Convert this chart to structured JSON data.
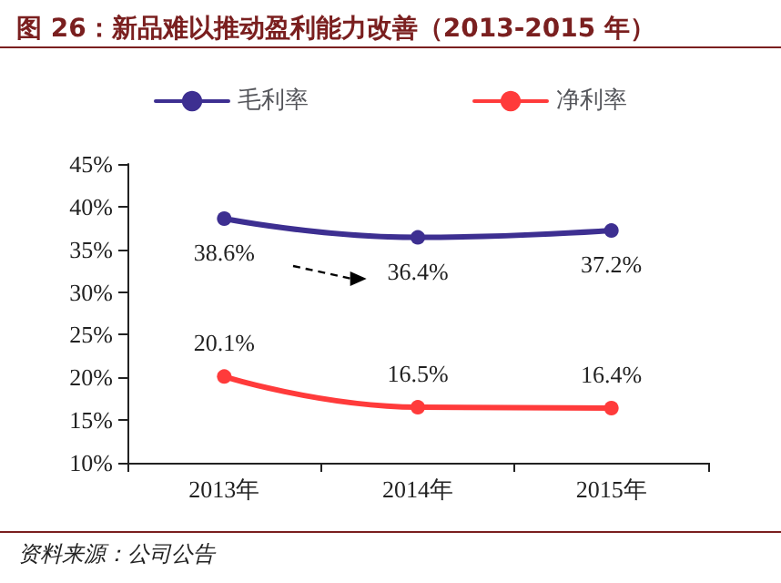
{
  "chart_data": {
    "type": "line",
    "title": "图 26：新品难以推动盈利能力改善（2013-2015 年）",
    "categories": [
      "2013年",
      "2014年",
      "2015年"
    ],
    "series": [
      {
        "name": "毛利率",
        "color": "#3d2f91",
        "values": [
          38.6,
          36.4,
          37.2
        ],
        "value_labels": [
          "38.6%",
          "36.4%",
          "37.2%"
        ]
      },
      {
        "name": "净利率",
        "color": "#ff3b3b",
        "values": [
          20.1,
          16.5,
          16.4
        ],
        "value_labels": [
          "20.1%",
          "16.5%",
          "16.4%"
        ]
      }
    ],
    "ylim": [
      10,
      45
    ],
    "yticks": [
      {
        "value": 10,
        "label": "10%"
      },
      {
        "value": 15,
        "label": "15%"
      },
      {
        "value": 20,
        "label": "20%"
      },
      {
        "value": 25,
        "label": "25%"
      },
      {
        "value": 30,
        "label": "30%"
      },
      {
        "value": 35,
        "label": "35%"
      },
      {
        "value": 40,
        "label": "40%"
      },
      {
        "value": 45,
        "label": "45%"
      }
    ],
    "grid": false,
    "legend": "top",
    "marker": "circle",
    "line_style": "solid",
    "annotations": [
      "资料来源：公司公告"
    ]
  }
}
